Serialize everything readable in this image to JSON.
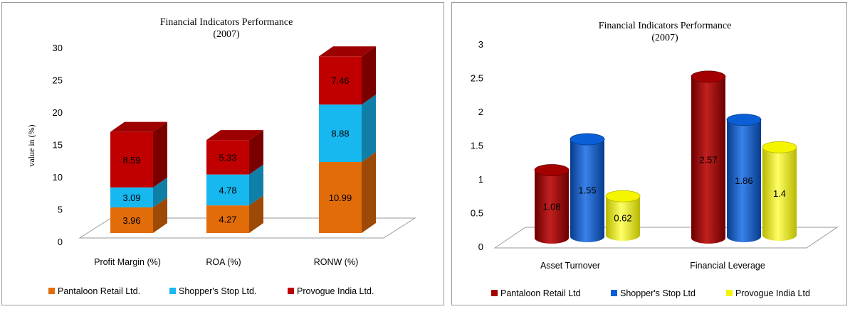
{
  "chart_data": [
    {
      "type": "bar",
      "stacked": true,
      "title": "Financial Indicators Performance",
      "subtitle": "(2007)",
      "ylabel": "value in (%)",
      "xlabel": "",
      "ylim": [
        0,
        30
      ],
      "yticks": [
        "0",
        "5",
        "10",
        "15",
        "20",
        "25",
        "30"
      ],
      "categories": [
        "Profit Margin (%)",
        "ROA (%)",
        "RONW (%)"
      ],
      "series": [
        {
          "name": "Pantaloon Retail Ltd.",
          "values": [
            3.96,
            4.27,
            10.99
          ],
          "color": "#e36c0a",
          "side": "#9c4a06",
          "top": "#c05a08"
        },
        {
          "name": "Shopper's Stop Ltd.",
          "values": [
            3.09,
            4.78,
            8.88
          ],
          "color": "#17b7f0",
          "side": "#0f7fa8",
          "top": "#1499c9"
        },
        {
          "name": "Provogue India Ltd.",
          "values": [
            8.59,
            5.33,
            7.46
          ],
          "color": "#c00000",
          "side": "#7a0000",
          "top": "#9c0000"
        }
      ],
      "legend_position": "bottom",
      "grid": false
    },
    {
      "type": "bar",
      "shape": "cylinder",
      "title": "Financial Indicators  Performance",
      "subtitle": "(2007)",
      "xlabel": "",
      "ylabel": "",
      "ylim": [
        0,
        3
      ],
      "yticks": [
        "0",
        "0.5",
        "1",
        "1.5",
        "2",
        "2.5",
        "3"
      ],
      "categories": [
        "Asset Turnover",
        "Financial Leverage"
      ],
      "series": [
        {
          "name": "Pantaloon Retail Ltd",
          "values": [
            1.08,
            2.57
          ],
          "labels": [
            "1.08",
            "2.57"
          ],
          "color": "#a40000",
          "dark": "#6a0000",
          "light": "#c22020"
        },
        {
          "name": "Shopper's Stop Ltd",
          "values": [
            1.55,
            1.86
          ],
          "labels": [
            "1.55",
            "1.86"
          ],
          "color": "#0a5fd6",
          "dark": "#063c8c",
          "light": "#3a82ea"
        },
        {
          "name": "Provogue India Ltd",
          "values": [
            0.62,
            1.4
          ],
          "labels": [
            "0.62",
            "1.4"
          ],
          "color": "#f5f500",
          "dark": "#b8b800",
          "light": "#ffff66"
        }
      ],
      "legend_position": "bottom",
      "grid": false
    }
  ]
}
